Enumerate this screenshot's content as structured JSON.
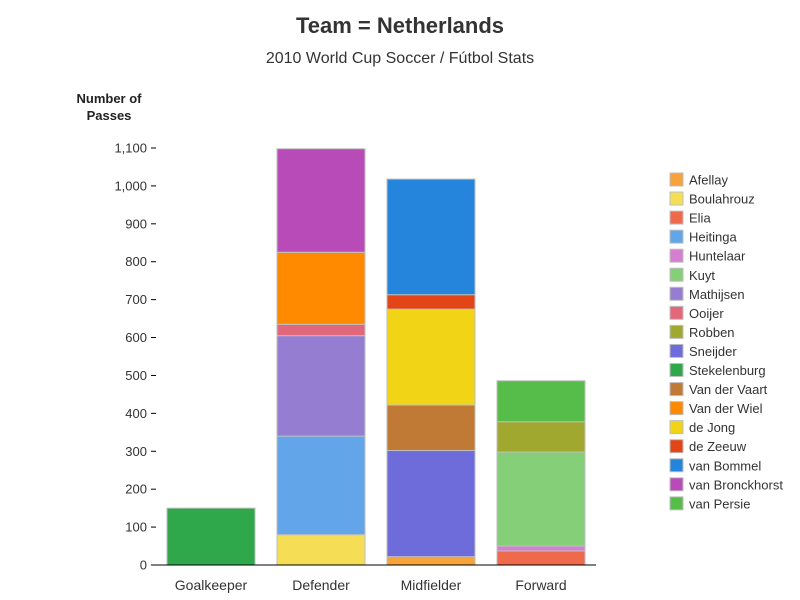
{
  "chart_data": {
    "type": "bar",
    "stacked": true,
    "title": "Team = Netherlands",
    "subtitle": "2010 World Cup Soccer / Fútbol Stats",
    "ylabel_line1": "Number of",
    "ylabel_line2": "Passes",
    "categories": [
      "Goalkeeper",
      "Defender",
      "Midfielder",
      "Forward"
    ],
    "ylim": [
      0,
      1100
    ],
    "yticks": [
      0,
      100,
      200,
      300,
      400,
      500,
      600,
      700,
      800,
      900,
      1000,
      1100
    ],
    "ytick_labels": [
      "0",
      "100",
      "200",
      "300",
      "400",
      "500",
      "600",
      "700",
      "800",
      "900",
      "1,000",
      "1,100"
    ],
    "legend_position": "right",
    "series": [
      {
        "name": "Afellay",
        "color": "#f5a33a",
        "values": [
          0,
          0,
          22,
          0
        ]
      },
      {
        "name": "Boulahrouz",
        "color": "#f5de55",
        "values": [
          0,
          80,
          0,
          0
        ]
      },
      {
        "name": "Elia",
        "color": "#ef6a4b",
        "values": [
          0,
          0,
          0,
          37
        ]
      },
      {
        "name": "Heitinga",
        "color": "#62a5e8",
        "values": [
          0,
          260,
          0,
          0
        ]
      },
      {
        "name": "Huntelaar",
        "color": "#d47fd0",
        "values": [
          0,
          0,
          0,
          13
        ]
      },
      {
        "name": "Kuyt",
        "color": "#85cf78",
        "values": [
          0,
          0,
          0,
          248
        ]
      },
      {
        "name": "Mathijsen",
        "color": "#957dd2",
        "values": [
          0,
          265,
          0,
          0
        ]
      },
      {
        "name": "Ooijer",
        "color": "#e3677a",
        "values": [
          0,
          30,
          0,
          0
        ]
      },
      {
        "name": "Robben",
        "color": "#a0a830",
        "values": [
          0,
          0,
          0,
          80
        ]
      },
      {
        "name": "Sneijder",
        "color": "#6e6bdb",
        "values": [
          0,
          0,
          280,
          0
        ]
      },
      {
        "name": "Stekelenburg",
        "color": "#2ea84a",
        "values": [
          150,
          0,
          0,
          0
        ]
      },
      {
        "name": "Van der Vaart",
        "color": "#c07a35",
        "values": [
          0,
          0,
          120,
          0
        ]
      },
      {
        "name": "Van der Wiel",
        "color": "#ff8a00",
        "values": [
          0,
          190,
          0,
          0
        ]
      },
      {
        "name": "de Jong",
        "color": "#f2d416",
        "values": [
          0,
          0,
          253,
          0
        ]
      },
      {
        "name": "de Zeeuw",
        "color": "#e24516",
        "values": [
          0,
          0,
          38,
          0
        ]
      },
      {
        "name": "van Bommel",
        "color": "#2584db",
        "values": [
          0,
          0,
          305,
          0
        ]
      },
      {
        "name": "van Bronckhorst",
        "color": "#b84bb8",
        "values": [
          0,
          273,
          0,
          0
        ]
      },
      {
        "name": "van Persie",
        "color": "#56bd4a",
        "values": [
          0,
          0,
          0,
          108
        ]
      }
    ]
  }
}
